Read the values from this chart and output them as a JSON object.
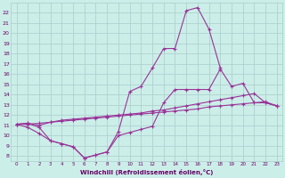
{
  "color": "#993399",
  "bg_color": "#cceee8",
  "grid_color": "#aacccc",
  "axis_color": "#660066",
  "xlabel": "Windchill (Refroidissement éolien,°C)",
  "xlim": [
    -0.5,
    23.5
  ],
  "ylim": [
    7.5,
    23
  ],
  "yticks": [
    8,
    9,
    10,
    11,
    12,
    13,
    14,
    15,
    16,
    17,
    18,
    19,
    20,
    21,
    22
  ],
  "xticks": [
    0,
    1,
    2,
    3,
    4,
    5,
    6,
    7,
    8,
    9,
    10,
    11,
    12,
    13,
    14,
    15,
    16,
    17,
    18,
    19,
    20,
    21,
    22,
    23
  ],
  "curve1_x": [
    0,
    1,
    2,
    3,
    4,
    5,
    6,
    7,
    8,
    9,
    10,
    11,
    12,
    13,
    14,
    15,
    16,
    17,
    18
  ],
  "curve1_y": [
    11.1,
    11.2,
    10.8,
    9.5,
    9.2,
    8.9,
    7.8,
    8.1,
    8.4,
    10.4,
    14.3,
    14.8,
    16.6,
    18.5,
    18.5,
    22.2,
    22.5,
    20.4,
    16.6
  ],
  "curve2_x": [
    0,
    1,
    2,
    3,
    4,
    5,
    6,
    7,
    8,
    9,
    10,
    11,
    12,
    13,
    14,
    15,
    16,
    17,
    18,
    19,
    20,
    21,
    22,
    23
  ],
  "curve2_y": [
    11.1,
    11.2,
    11.0,
    11.3,
    11.5,
    11.6,
    11.7,
    11.8,
    11.9,
    12.0,
    12.1,
    12.2,
    12.4,
    12.5,
    12.7,
    12.9,
    13.1,
    13.3,
    13.5,
    13.7,
    13.9,
    14.1,
    13.2,
    12.9
  ],
  "curve3_x": [
    0,
    1,
    2,
    3,
    4,
    5,
    6,
    7,
    8,
    9,
    10,
    11,
    12,
    13,
    14,
    15,
    16,
    17,
    18,
    19,
    20,
    21,
    22,
    23
  ],
  "curve3_y": [
    11.1,
    11.1,
    11.2,
    11.3,
    11.4,
    11.5,
    11.6,
    11.7,
    11.8,
    11.9,
    12.0,
    12.1,
    12.2,
    12.3,
    12.4,
    12.5,
    12.6,
    12.8,
    12.9,
    13.0,
    13.1,
    13.2,
    13.3,
    12.9
  ],
  "curve4_x": [
    0,
    1,
    2,
    3,
    4,
    5,
    6,
    7,
    8,
    9,
    10,
    11,
    12,
    13,
    14,
    15,
    16,
    17,
    18,
    19,
    20,
    21,
    22,
    23
  ],
  "curve4_y": [
    11.1,
    10.8,
    10.2,
    9.5,
    9.2,
    8.9,
    7.8,
    8.1,
    8.4,
    10.0,
    10.3,
    10.6,
    10.9,
    13.2,
    14.5,
    14.5,
    14.5,
    14.5,
    16.5,
    14.8,
    15.1,
    13.2,
    13.2,
    12.9
  ]
}
